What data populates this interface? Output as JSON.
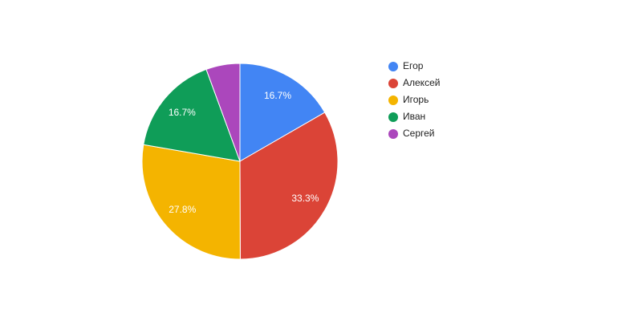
{
  "chart_data": {
    "type": "pie",
    "categories": [
      "Егор",
      "Алексей",
      "Игорь",
      "Иван",
      "Сергей"
    ],
    "values": [
      16.7,
      33.3,
      27.8,
      16.7,
      5.6
    ],
    "value_labels": [
      "16.7%",
      "33.3%",
      "27.8%",
      "16.7%",
      null
    ],
    "colors": [
      "#4285f4",
      "#db4437",
      "#f4b400",
      "#0f9d58",
      "#ab47bc"
    ],
    "legend": "right"
  }
}
